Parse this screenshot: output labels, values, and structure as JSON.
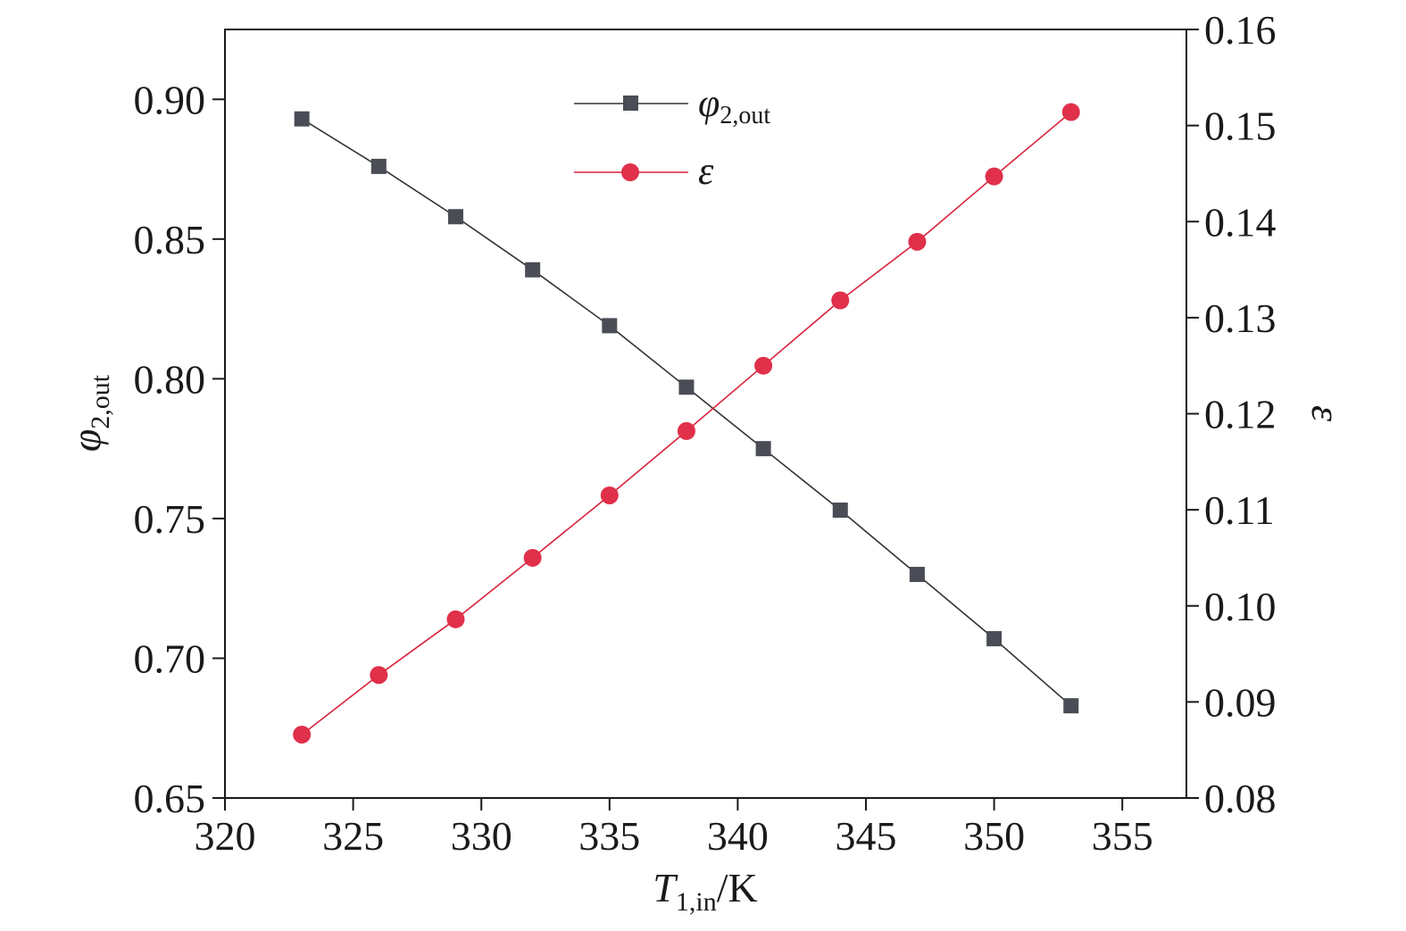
{
  "chart_data": {
    "type": "line",
    "xlabel": {
      "main": "T",
      "sub": "1,in",
      "unit": "/K"
    },
    "ylabel_left": {
      "main": "φ",
      "sub": "2,out"
    },
    "ylabel_right": {
      "main": "ε"
    },
    "xlim": [
      320,
      357.5
    ],
    "ylim_left": [
      0.65,
      0.925
    ],
    "ylim_right": [
      0.08,
      0.16
    ],
    "x_ticks": [
      320,
      325,
      330,
      335,
      340,
      345,
      350,
      355
    ],
    "y_left_ticks": [
      0.65,
      0.7,
      0.75,
      0.8,
      0.85,
      0.9
    ],
    "y_right_ticks": [
      0.08,
      0.09,
      0.1,
      0.11,
      0.12,
      0.13,
      0.14,
      0.15,
      0.16
    ],
    "x_tick_labels": [
      "320",
      "325",
      "330",
      "335",
      "340",
      "345",
      "350",
      "355"
    ],
    "y_left_tick_labels": [
      "0.65",
      "0.70",
      "0.75",
      "0.80",
      "0.85",
      "0.90"
    ],
    "y_right_tick_labels": [
      "0.08",
      "0.09",
      "0.10",
      "0.11",
      "0.12",
      "0.13",
      "0.14",
      "0.15",
      "0.16"
    ],
    "x": [
      323,
      326,
      329,
      332,
      335,
      338,
      341,
      344,
      347,
      350,
      353
    ],
    "series": [
      {
        "name": {
          "main": "φ",
          "sub": "2,out"
        },
        "axis": "left",
        "marker": "square",
        "color": "#4a4d55",
        "line_color": "#333333",
        "values": [
          0.893,
          0.876,
          0.858,
          0.839,
          0.819,
          0.797,
          0.775,
          0.753,
          0.73,
          0.707,
          0.683
        ]
      },
      {
        "name": {
          "main": "ε"
        },
        "axis": "right",
        "marker": "circle",
        "color": "#e0304a",
        "line_color": "#d8213c",
        "values": [
          0.0866,
          0.0928,
          0.0986,
          0.105,
          0.1115,
          0.1182,
          0.125,
          0.1318,
          0.1379,
          0.1447,
          0.1514
        ]
      }
    ],
    "legend": "top-center",
    "grid": false
  }
}
